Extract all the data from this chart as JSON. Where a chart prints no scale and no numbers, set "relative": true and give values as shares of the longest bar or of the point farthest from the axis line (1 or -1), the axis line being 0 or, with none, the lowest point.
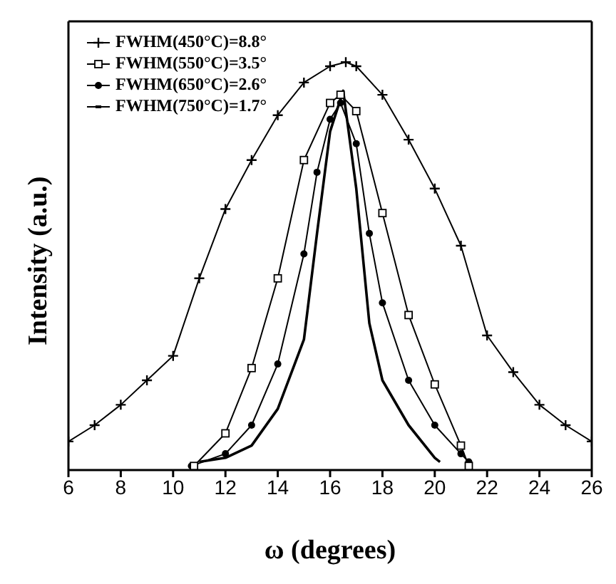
{
  "chart_data": {
    "type": "line",
    "xlabel": "ω (degrees)",
    "ylabel": "Intensity (a.u.)",
    "relative": true,
    "xlim": [
      6,
      26
    ],
    "xticks": [
      6,
      8,
      10,
      12,
      14,
      16,
      18,
      20,
      22,
      24,
      26
    ],
    "legend": "top left",
    "grid": false,
    "series": [
      {
        "name": "FWHM(450°C)=8.8°",
        "color": "#000000",
        "marker": "cross",
        "x": [
          6,
          7,
          8,
          9,
          10,
          11,
          12,
          13,
          14,
          15,
          16,
          16.6,
          17,
          18,
          19,
          20,
          21,
          22,
          23,
          24,
          25,
          26
        ],
        "values": [
          0.07,
          0.11,
          0.16,
          0.22,
          0.28,
          0.47,
          0.64,
          0.76,
          0.87,
          0.95,
          0.99,
          1.0,
          0.99,
          0.92,
          0.81,
          0.69,
          0.55,
          0.33,
          0.24,
          0.16,
          0.11,
          0.07
        ]
      },
      {
        "name": "FWHM(550°C)=3.5°",
        "color": "#000000",
        "marker": "square",
        "x": [
          10.8,
          12,
          13,
          14,
          15,
          16,
          16.4,
          17,
          18,
          19,
          20,
          21,
          21.3
        ],
        "values": [
          0.01,
          0.09,
          0.25,
          0.47,
          0.76,
          0.9,
          0.92,
          0.88,
          0.63,
          0.38,
          0.21,
          0.06,
          0.01
        ]
      },
      {
        "name": "FWHM(650°C)=2.6°",
        "color": "#000000",
        "marker": "circle",
        "x": [
          10.7,
          12,
          13,
          14,
          15,
          15.5,
          16,
          16.4,
          17,
          17.5,
          18,
          19,
          20,
          21,
          21.3
        ],
        "values": [
          0.01,
          0.04,
          0.11,
          0.26,
          0.53,
          0.73,
          0.86,
          0.9,
          0.8,
          0.58,
          0.41,
          0.22,
          0.11,
          0.04,
          0.02
        ]
      },
      {
        "name": "FWHM(750°C)=1.7°",
        "color": "#000000",
        "marker": "none",
        "x": [
          11,
          12,
          13,
          14,
          15,
          15.5,
          16,
          16.5,
          17,
          17.5,
          18,
          19,
          20,
          20.2
        ],
        "values": [
          0.02,
          0.03,
          0.06,
          0.15,
          0.32,
          0.58,
          0.83,
          0.93,
          0.69,
          0.36,
          0.22,
          0.11,
          0.03,
          0.02
        ]
      }
    ]
  }
}
